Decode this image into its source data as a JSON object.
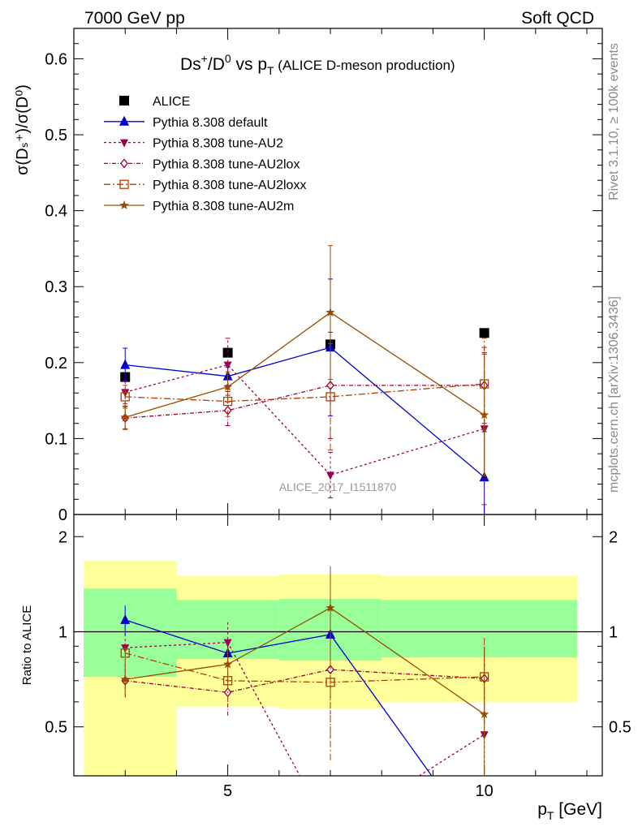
{
  "header": {
    "left": "7000 GeV pp",
    "right": "Soft QCD"
  },
  "side_labels": {
    "rivet": "Rivet 3.1.10, ≥ 100k events",
    "mcplots": "mcplots.cern.ch [arXiv:1306.3436]"
  },
  "chart_data": [
    {
      "type": "line",
      "title_parts": {
        "main": "Ds",
        "sup1": "+",
        "mid": "/D",
        "sup2": "0",
        "vs": " vs p",
        "sub": "T",
        "note": " (ALICE D-meson production)"
      },
      "ylabel_text": "σ(Dₛ⁺)/σ(D⁰)",
      "watermark": "ALICE_2017_I1511870",
      "ylim": [
        0,
        0.64
      ],
      "xlim": [
        2,
        12.3
      ],
      "yticks": [
        "0",
        "0.1",
        "0.2",
        "0.3",
        "0.4",
        "0.5",
        "0.6"
      ],
      "legend_placement": "top-left",
      "series": [
        {
          "name": "ALICE",
          "color": "#000000",
          "marker": "square-filled",
          "x": [
            3,
            5,
            7,
            10
          ],
          "y": [
            0.181,
            0.213,
            0.224,
            0.239
          ]
        },
        {
          "name": "Pythia 8.308 default",
          "color": "#0000cc",
          "marker": "triangle-up",
          "dash": "",
          "x": [
            3,
            5,
            7,
            10
          ],
          "y": [
            0.197,
            0.182,
            0.22,
            0.049
          ],
          "err": [
            0.022,
            0.012,
            0.09,
            0.06
          ]
        },
        {
          "name": "Pythia 8.308 tune-AU2",
          "color": "#99004d",
          "marker": "triangle-down",
          "dash": "3,3",
          "x": [
            3,
            5,
            7,
            10
          ],
          "y": [
            0.161,
            0.197,
            0.052,
            0.113
          ],
          "err": [
            0.015,
            0.035,
            0.03,
            0.1
          ]
        },
        {
          "name": "Pythia 8.308 tune-AU2lox",
          "color": "#990033",
          "marker": "diamond-open",
          "dash": "5,2,1,2",
          "x": [
            3,
            5,
            7,
            10
          ],
          "y": [
            0.127,
            0.137,
            0.17,
            0.17
          ],
          "err": [
            0.015,
            0.02,
            0.07,
            0.05
          ]
        },
        {
          "name": "Pythia 8.308 tune-AU2loxx",
          "color": "#b33c00",
          "marker": "square-open",
          "dash": "8,3,2,3",
          "x": [
            3,
            5,
            7,
            10
          ],
          "y": [
            0.155,
            0.149,
            0.155,
            0.172
          ],
          "err": [
            0.015,
            0.02,
            0.07,
            0.06
          ]
        },
        {
          "name": "Pythia 8.308 tune-AU2m",
          "color": "#994c00",
          "marker": "star",
          "dash": "",
          "x": [
            3,
            5,
            7,
            10
          ],
          "y": [
            0.128,
            0.168,
            0.266,
            0.131
          ],
          "err": [
            0.015,
            0.02,
            0.088,
            0.08
          ]
        }
      ]
    },
    {
      "type": "line",
      "ylabel": "Ratio to ALICE",
      "xlabel_main": "p",
      "xlabel_sub": "T",
      "xlabel_unit": " [GeV]",
      "ylim": [
        0.35,
        2.35
      ],
      "xlim": [
        2,
        12.3
      ],
      "yticks": [
        "0.5",
        "1",
        "2"
      ],
      "xticks": [
        "5",
        "10"
      ],
      "bands": [
        {
          "x0": 2,
          "x1": 4,
          "yellow": [
            0.3,
            1.68
          ],
          "green": [
            0.72,
            1.37
          ]
        },
        {
          "x0": 4,
          "x1": 6,
          "yellow": [
            0.58,
            1.5
          ],
          "green": [
            0.82,
            1.26
          ]
        },
        {
          "x0": 6,
          "x1": 8,
          "yellow": [
            0.57,
            1.52
          ],
          "green": [
            0.81,
            1.27
          ]
        },
        {
          "x0": 8,
          "x1": 12,
          "yellow": [
            0.6,
            1.5
          ],
          "green": [
            0.83,
            1.26
          ]
        }
      ],
      "series": [
        {
          "name": "Pythia 8.308 default",
          "color": "#0000cc",
          "marker": "triangle-up",
          "dash": "",
          "x": [
            3,
            5,
            7,
            10
          ],
          "y": [
            1.09,
            0.855,
            0.98,
            0.205
          ],
          "err": [
            0.12,
            0.06,
            0.0,
            0.0
          ]
        },
        {
          "name": "Pythia 8.308 tune-AU2",
          "color": "#99004d",
          "marker": "triangle-down",
          "dash": "3,3",
          "x": [
            3,
            5,
            7,
            10
          ],
          "y": [
            0.89,
            0.925,
            0.232,
            0.473
          ],
          "err": [
            0.08,
            0.16,
            0.0,
            0.42
          ]
        },
        {
          "name": "Pythia 8.308 tune-AU2lox",
          "color": "#990033",
          "marker": "diamond-open",
          "dash": "5,2,1,2",
          "x": [
            3,
            5,
            7,
            10
          ],
          "y": [
            0.7,
            0.643,
            0.759,
            0.711
          ],
          "err": [
            0.08,
            0.1,
            0.3,
            0.2
          ]
        },
        {
          "name": "Pythia 8.308 tune-AU2loxx",
          "color": "#b33c00",
          "marker": "square-open",
          "dash": "8,3,2,3",
          "x": [
            3,
            5,
            7,
            10
          ],
          "y": [
            0.856,
            0.7,
            0.692,
            0.72
          ],
          "err": [
            0.08,
            0.1,
            0.3,
            0.25
          ]
        },
        {
          "name": "Pythia 8.308 tune-AU2m",
          "color": "#994c00",
          "marker": "star",
          "dash": "",
          "x": [
            3,
            5,
            7,
            10
          ],
          "y": [
            0.707,
            0.789,
            1.19,
            0.548
          ],
          "err": [
            0.08,
            0.1,
            0.42,
            0.35
          ]
        }
      ]
    }
  ]
}
